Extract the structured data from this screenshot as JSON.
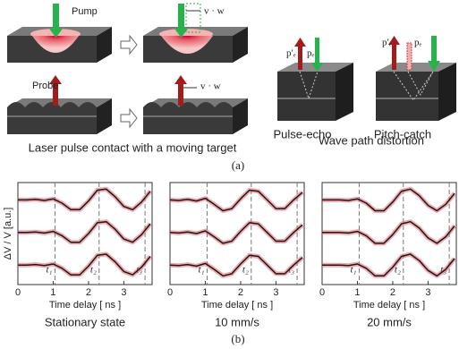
{
  "figure_a": {
    "pump": "Pump",
    "probe": "Probe",
    "vw_top": "v · w",
    "vw_bottom": "v · w",
    "caption_left": "Laser pulse contact with a moving target",
    "pulse_echo": "Pulse-echo",
    "pitch_catch": "Pitch-catch",
    "pe_prime_1": "p′ₑ",
    "pe_1": "pₑ",
    "pe_prime_2": "p′ₑ",
    "pe_2": "pₑ",
    "caption_right": "Wave path distortion",
    "label": "(a)"
  },
  "figure_b": {
    "label": "(b)"
  },
  "chart_data": [
    {
      "type": "line",
      "caption": "Stationary state",
      "xlabel": "Time delay [ ns ]",
      "ylabel": "ΔV / V [a.u.]",
      "x": [
        0,
        0.25,
        0.5,
        0.75,
        1.0,
        1.25,
        1.5,
        1.75,
        2.0,
        2.25,
        2.5,
        2.75,
        3.0,
        3.25,
        3.5,
        3.75
      ],
      "xlim": [
        0,
        3.8
      ],
      "xticks": [
        0,
        1,
        2,
        3
      ],
      "ylim": [
        -1.8,
        7.6
      ],
      "series": [
        {
          "color": "#1a1a1a",
          "values": [
            6.0,
            6.0,
            6.05,
            5.95,
            6.1,
            5.7,
            5.1,
            5.1,
            5.9,
            6.9,
            7.0,
            6.3,
            5.4,
            5.1,
            5.8,
            6.8
          ]
        },
        {
          "color": "#1a1a1a",
          "values": [
            3.0,
            3.0,
            3.05,
            2.95,
            3.1,
            2.7,
            2.1,
            2.1,
            2.9,
            3.9,
            4.0,
            3.3,
            2.4,
            2.1,
            2.8,
            3.8
          ]
        },
        {
          "color": "#1a1a1a",
          "values": [
            0.0,
            0.0,
            0.05,
            -0.05,
            0.1,
            -0.3,
            -0.9,
            -0.9,
            -0.1,
            0.9,
            1.0,
            0.3,
            -0.6,
            -0.9,
            -0.2,
            0.8
          ]
        }
      ],
      "markers": [
        {
          "x": 1.05,
          "label": "t₁"
        },
        {
          "x": 2.3,
          "label": "t₂"
        },
        {
          "x": 3.6,
          "label": "t₃"
        }
      ]
    },
    {
      "type": "line",
      "caption": "10 mm/s",
      "xlabel": "Time delay [ ns ]",
      "x": [
        0,
        0.25,
        0.5,
        0.75,
        1.0,
        1.25,
        1.5,
        1.75,
        2.0,
        2.25,
        2.5,
        2.75,
        3.0,
        3.25,
        3.5,
        3.75
      ],
      "xlim": [
        0,
        3.8
      ],
      "xticks": [
        0,
        1,
        2,
        3
      ],
      "ylim": [
        -1.8,
        7.6
      ],
      "series": [
        {
          "color": "#1a1a1a",
          "values": [
            6.0,
            5.95,
            6.05,
            5.9,
            6.15,
            5.6,
            5.0,
            5.2,
            6.1,
            6.9,
            6.8,
            6.0,
            5.2,
            5.2,
            6.0,
            6.7
          ]
        },
        {
          "color": "#1a1a1a",
          "values": [
            3.0,
            2.95,
            3.05,
            2.9,
            3.15,
            2.6,
            2.0,
            2.2,
            3.1,
            3.9,
            3.8,
            3.0,
            2.2,
            2.2,
            3.0,
            3.7
          ]
        },
        {
          "color": "#1a1a1a",
          "values": [
            0.0,
            -0.05,
            0.05,
            -0.1,
            0.15,
            -0.4,
            -1.0,
            -0.8,
            0.1,
            0.9,
            0.8,
            0.0,
            -0.8,
            -0.8,
            0.0,
            0.7
          ]
        }
      ],
      "markers": [
        {
          "x": 1.05,
          "label": "t₁"
        },
        {
          "x": 2.3,
          "label": "t₂"
        },
        {
          "x": 3.6,
          "label": "t₃"
        }
      ]
    },
    {
      "type": "line",
      "caption": "20 mm/s",
      "xlabel": "Time delay [ ns ]",
      "x": [
        0,
        0.25,
        0.5,
        0.75,
        1.0,
        1.25,
        1.5,
        1.75,
        2.0,
        2.25,
        2.5,
        2.75,
        3.0,
        3.25,
        3.5,
        3.75
      ],
      "xlim": [
        0,
        3.8
      ],
      "xticks": [
        0,
        1,
        2,
        3
      ],
      "ylim": [
        -1.8,
        7.6
      ],
      "series": [
        {
          "color": "#1a1a1a",
          "values": [
            6.0,
            6.0,
            6.0,
            5.95,
            6.1,
            5.7,
            5.0,
            5.0,
            5.8,
            6.8,
            7.0,
            6.4,
            5.5,
            5.0,
            5.6,
            6.6
          ]
        },
        {
          "color": "#1a1a1a",
          "values": [
            3.0,
            3.0,
            3.0,
            2.95,
            3.1,
            2.7,
            2.0,
            2.0,
            2.8,
            3.8,
            4.0,
            3.4,
            2.5,
            2.0,
            2.6,
            3.6
          ]
        },
        {
          "color": "#1a1a1a",
          "values": [
            0.0,
            0.0,
            0.0,
            -0.05,
            0.1,
            -0.3,
            -1.0,
            -1.0,
            -0.2,
            0.8,
            1.0,
            0.4,
            -0.5,
            -1.0,
            -0.4,
            0.6
          ]
        }
      ],
      "markers": [
        {
          "x": 1.05,
          "label": "t₁"
        },
        {
          "x": 2.3,
          "label": "t₂"
        },
        {
          "x": 3.6,
          "label": "t₃"
        }
      ]
    }
  ]
}
